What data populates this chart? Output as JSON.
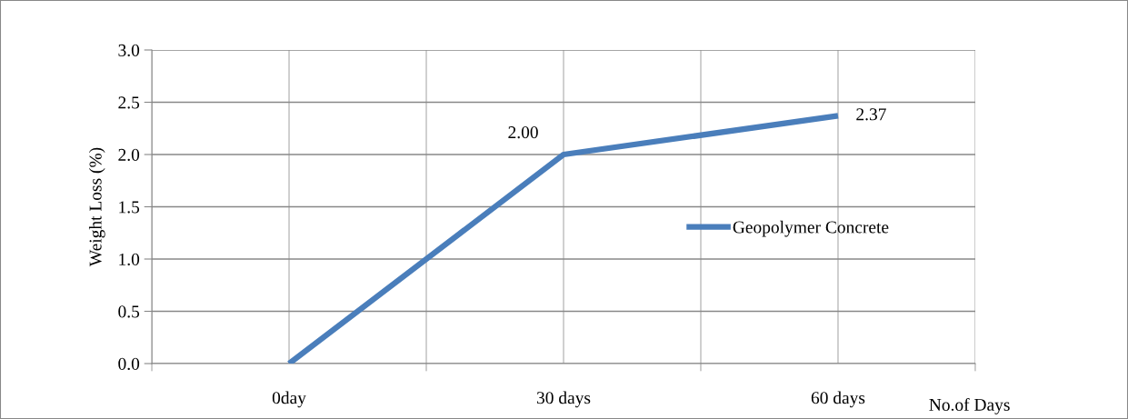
{
  "chart_data": {
    "type": "line",
    "ylabel": "Weight Loss (%)",
    "xlabel": "No.of Days",
    "categories": [
      "0day",
      "30 days",
      "60 days"
    ],
    "series": [
      {
        "name": "Geopolymer Concrete",
        "color": "#4a7ebb",
        "values": [
          0,
          2.0,
          2.37
        ],
        "value_labels": [
          null,
          "2.00",
          "2.37"
        ]
      }
    ],
    "ylim": [
      0,
      3
    ],
    "yticks": [
      {
        "value": 0,
        "label": "0.0"
      },
      {
        "value": 0.5,
        "label": "0.5"
      },
      {
        "value": 1,
        "label": "1.0"
      },
      {
        "value": 1.5,
        "label": "1.5"
      },
      {
        "value": 2,
        "label": "2.0"
      },
      {
        "value": 2.5,
        "label": "2.5"
      },
      {
        "value": 3,
        "label": "3.0"
      }
    ],
    "grid": true,
    "legend": "right",
    "marker": "none",
    "line_style": "solid"
  }
}
